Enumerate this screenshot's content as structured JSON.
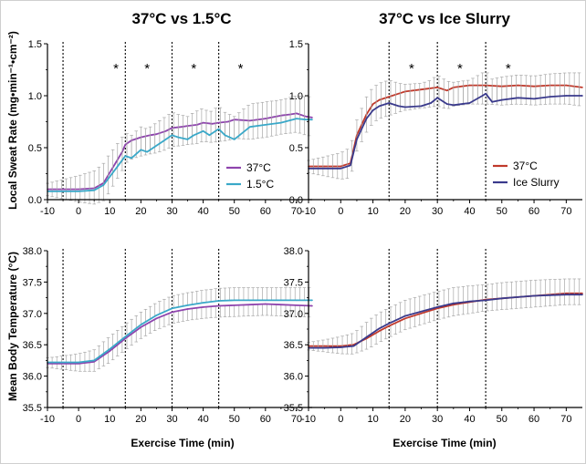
{
  "titles": [
    "37°C vs 1.5°C",
    "37°C vs Ice Slurry"
  ],
  "ylabel_top": "Local Sweat Rate (mg•min⁻¹•cm⁻²)",
  "ylabel_bottom": "Mean Body Temperature (°C)",
  "xlabel": "Exercise Time (min)",
  "colors": {
    "red": "#c0392b",
    "purple": "#8e44ad",
    "cyan": "#3aa8c8",
    "navy": "#3a3a8c",
    "error": "#a8a8a8",
    "axis": "#000000"
  },
  "chart_data": [
    {
      "type": "line",
      "title": "37°C vs 1.5°C",
      "xlabel": "",
      "ylabel": "Local Sweat Rate (mg•min⁻¹•cm⁻²)",
      "xlim": [
        -10,
        75
      ],
      "ylim": [
        0,
        1.5
      ],
      "xticks": [
        -10,
        0,
        10,
        20,
        30,
        40,
        50,
        60,
        70
      ],
      "yticks": [
        "0.0",
        "0.5",
        "1.0",
        "1.5"
      ],
      "vlines": [
        -5,
        15,
        30,
        45
      ],
      "annotations": [
        {
          "text": "*",
          "x": 12
        },
        {
          "text": "*",
          "x": 22
        },
        {
          "text": "*",
          "x": 37
        },
        {
          "text": "*",
          "x": 52
        }
      ],
      "legend": "bottom-right",
      "series": [
        {
          "name": "37°C",
          "color": "purple",
          "x": [
            -10,
            -5,
            0,
            5,
            8,
            10,
            12,
            14,
            15,
            17,
            20,
            23,
            25,
            28,
            30,
            33,
            35,
            38,
            40,
            43,
            45,
            48,
            50,
            55,
            60,
            65,
            68,
            70,
            73,
            75
          ],
          "y": [
            0.1,
            0.1,
            0.1,
            0.11,
            0.16,
            0.26,
            0.36,
            0.46,
            0.53,
            0.57,
            0.6,
            0.62,
            0.63,
            0.66,
            0.69,
            0.7,
            0.71,
            0.72,
            0.74,
            0.73,
            0.74,
            0.75,
            0.77,
            0.76,
            0.78,
            0.81,
            0.82,
            0.83,
            0.8,
            0.79
          ],
          "err": 0.18
        },
        {
          "name": "1.5°C",
          "color": "cyan",
          "x": [
            -10,
            -5,
            0,
            5,
            8,
            10,
            12,
            14,
            15,
            17,
            20,
            22,
            25,
            27,
            30,
            32,
            35,
            37,
            40,
            42,
            45,
            47,
            50,
            55,
            60,
            65,
            70,
            73,
            75
          ],
          "y": [
            0.08,
            0.08,
            0.08,
            0.09,
            0.14,
            0.22,
            0.3,
            0.38,
            0.42,
            0.4,
            0.48,
            0.46,
            0.52,
            0.56,
            0.62,
            0.6,
            0.58,
            0.62,
            0.66,
            0.62,
            0.68,
            0.62,
            0.58,
            0.7,
            0.72,
            0.74,
            0.78,
            0.77,
            0.77
          ],
          "err": 0.22
        }
      ]
    },
    {
      "type": "line",
      "title": "37°C vs Ice Slurry",
      "xlabel": "",
      "ylabel": "",
      "xlim": [
        -10,
        75
      ],
      "ylim": [
        0,
        1.5
      ],
      "xticks": [
        -10,
        0,
        10,
        20,
        30,
        40,
        50,
        60,
        70
      ],
      "yticks": [
        "0.0",
        "0.5",
        "1.0",
        "1.5"
      ],
      "vlines": [
        15,
        30,
        45
      ],
      "annotations": [
        {
          "text": "*",
          "x": 22
        },
        {
          "text": "*",
          "x": 37
        },
        {
          "text": "*",
          "x": 52
        }
      ],
      "legend": "bottom-right",
      "series": [
        {
          "name": "37°C",
          "color": "red",
          "x": [
            -10,
            -5,
            0,
            3,
            5,
            8,
            10,
            12,
            15,
            18,
            20,
            25,
            30,
            33,
            35,
            40,
            45,
            50,
            55,
            60,
            65,
            70,
            75
          ],
          "y": [
            0.32,
            0.32,
            0.32,
            0.35,
            0.62,
            0.82,
            0.92,
            0.96,
            0.99,
            1.02,
            1.04,
            1.06,
            1.08,
            1.05,
            1.08,
            1.1,
            1.1,
            1.09,
            1.1,
            1.09,
            1.1,
            1.1,
            1.08
          ],
          "err": 0.18
        },
        {
          "name": "Ice Slurry",
          "color": "navy",
          "x": [
            -10,
            -5,
            0,
            3,
            5,
            8,
            10,
            12,
            15,
            18,
            20,
            25,
            28,
            30,
            33,
            35,
            40,
            44,
            45,
            47,
            50,
            55,
            60,
            65,
            70,
            75
          ],
          "y": [
            0.3,
            0.3,
            0.3,
            0.33,
            0.58,
            0.78,
            0.86,
            0.9,
            0.93,
            0.9,
            0.89,
            0.9,
            0.93,
            0.98,
            0.92,
            0.91,
            0.93,
            1.0,
            1.02,
            0.94,
            0.96,
            0.98,
            0.97,
            0.99,
            1.0,
            1.0
          ],
          "err": 0.22
        }
      ]
    },
    {
      "type": "line",
      "title": "",
      "xlabel": "Exercise Time (min)",
      "ylabel": "Mean Body Temperature (°C)",
      "xlim": [
        -10,
        75
      ],
      "ylim": [
        35.5,
        38.0
      ],
      "xticks": [
        -10,
        0,
        10,
        20,
        30,
        40,
        50,
        60,
        70
      ],
      "yticks": [
        "35.5",
        "36.0",
        "36.5",
        "37.0",
        "37.5",
        "38.0"
      ],
      "vlines": [
        -5,
        15,
        30,
        45
      ],
      "annotations": [],
      "legend": "none",
      "series": [
        {
          "name": "37°C",
          "color": "purple",
          "x": [
            -10,
            -5,
            0,
            5,
            10,
            15,
            20,
            25,
            30,
            35,
            40,
            45,
            50,
            55,
            60,
            65,
            70,
            75
          ],
          "y": [
            36.2,
            36.2,
            36.2,
            36.23,
            36.4,
            36.6,
            36.78,
            36.92,
            37.02,
            37.07,
            37.1,
            37.12,
            37.13,
            37.14,
            37.15,
            37.14,
            37.13,
            37.12
          ],
          "err": 0.18
        },
        {
          "name": "1.5°C",
          "color": "cyan",
          "x": [
            -10,
            -5,
            0,
            5,
            10,
            15,
            20,
            25,
            30,
            35,
            40,
            45,
            50,
            55,
            60,
            65,
            70,
            75
          ],
          "y": [
            36.22,
            36.22,
            36.22,
            36.25,
            36.43,
            36.63,
            36.82,
            36.97,
            37.08,
            37.13,
            37.17,
            37.2,
            37.21,
            37.21,
            37.21,
            37.21,
            37.21,
            37.21
          ],
          "err": 0.2
        }
      ]
    },
    {
      "type": "line",
      "title": "",
      "xlabel": "Exercise Time (min)",
      "ylabel": "",
      "xlim": [
        -10,
        75
      ],
      "ylim": [
        35.5,
        38.0
      ],
      "xticks": [
        -10,
        0,
        10,
        20,
        30,
        40,
        50,
        60,
        70
      ],
      "yticks": [
        "35.5",
        "36.0",
        "36.5",
        "37.0",
        "37.5",
        "38.0"
      ],
      "vlines": [
        15,
        30,
        45
      ],
      "annotations": [],
      "legend": "none",
      "series": [
        {
          "name": "37°C",
          "color": "red",
          "x": [
            -10,
            -5,
            0,
            4,
            8,
            12,
            15,
            20,
            25,
            30,
            35,
            40,
            45,
            50,
            55,
            60,
            65,
            70,
            75
          ],
          "y": [
            36.48,
            36.48,
            36.48,
            36.5,
            36.6,
            36.72,
            36.8,
            36.92,
            37.0,
            37.08,
            37.14,
            37.18,
            37.22,
            37.24,
            37.26,
            37.28,
            37.3,
            37.32,
            37.32
          ],
          "err": 0.18
        },
        {
          "name": "Ice Slurry",
          "color": "navy",
          "x": [
            -10,
            -5,
            0,
            4,
            8,
            12,
            15,
            20,
            25,
            30,
            35,
            40,
            45,
            50,
            55,
            60,
            65,
            70,
            75
          ],
          "y": [
            36.45,
            36.45,
            36.46,
            36.48,
            36.62,
            36.76,
            36.84,
            36.96,
            37.03,
            37.1,
            37.16,
            37.19,
            37.21,
            37.24,
            37.26,
            37.28,
            37.29,
            37.3,
            37.3
          ],
          "err": 0.25
        }
      ]
    }
  ]
}
